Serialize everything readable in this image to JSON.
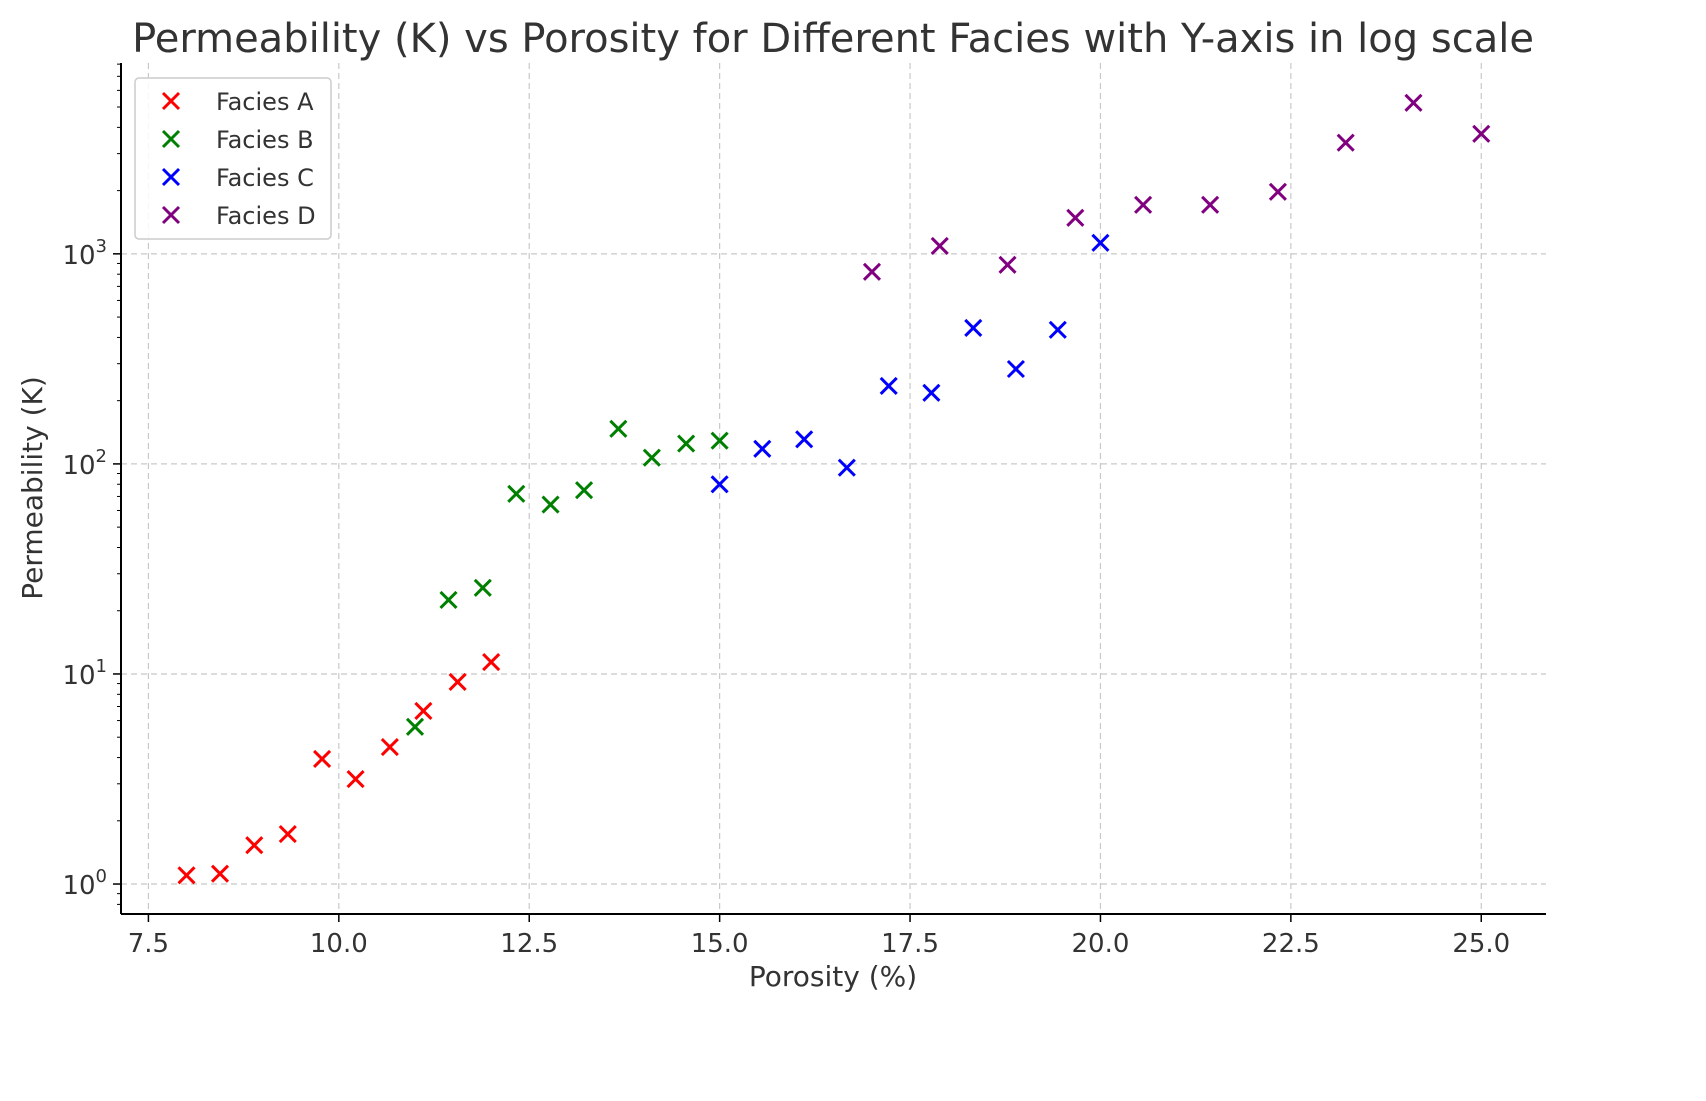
{
  "chart_data": {
    "type": "scatter",
    "title": "Permeability (K) vs Porosity for Different Facies with Y-axis in log scale",
    "xlabel": "Porosity (%)",
    "ylabel": "Permeability (K)",
    "xlim": [
      7.14,
      25.85
    ],
    "ylim": [
      0.72,
      8100
    ],
    "yscale": "log",
    "grid": true,
    "legend_position": "top-left",
    "marker": "x",
    "xticks": [
      7.5,
      10.0,
      12.5,
      15.0,
      17.5,
      20.0,
      22.5,
      25.0
    ],
    "xtick_labels": [
      "7.5",
      "10.0",
      "12.5",
      "15.0",
      "17.5",
      "20.0",
      "22.5",
      "25.0"
    ],
    "yticks": [
      1,
      10,
      100,
      1000
    ],
    "ytick_labels": [
      {
        "base": "10",
        "exp": "0"
      },
      {
        "base": "10",
        "exp": "1"
      },
      {
        "base": "10",
        "exp": "2"
      },
      {
        "base": "10",
        "exp": "3"
      }
    ],
    "series": [
      {
        "name": "Facies A",
        "color": "#ff0000",
        "x": [
          8.0,
          8.44,
          8.89,
          9.33,
          9.78,
          10.22,
          10.67,
          11.11,
          11.56,
          12.0
        ],
        "y": [
          1.1,
          1.12,
          1.53,
          1.73,
          3.94,
          3.16,
          4.49,
          6.67,
          9.16,
          11.4
        ]
      },
      {
        "name": "Facies B",
        "color": "#008000",
        "x": [
          11.0,
          11.44,
          11.89,
          12.33,
          12.78,
          13.22,
          13.67,
          14.11,
          14.56,
          15.0
        ],
        "y": [
          5.6,
          22.5,
          25.7,
          72,
          64,
          75,
          147,
          107,
          125,
          129
        ]
      },
      {
        "name": "Facies C",
        "color": "#0000ff",
        "x": [
          15.0,
          15.56,
          16.11,
          16.67,
          17.22,
          17.78,
          18.33,
          18.89,
          19.44,
          20.0
        ],
        "y": [
          80,
          118,
          131,
          96,
          235,
          218,
          444,
          283,
          435,
          1128
        ]
      },
      {
        "name": "Facies D",
        "color": "#800080",
        "x": [
          17.0,
          17.89,
          18.78,
          19.67,
          20.56,
          21.44,
          22.33,
          23.22,
          24.11,
          25.0
        ],
        "y": [
          821,
          1091,
          887,
          1484,
          1711,
          1711,
          1974,
          3380,
          5234,
          3727
        ]
      }
    ]
  }
}
